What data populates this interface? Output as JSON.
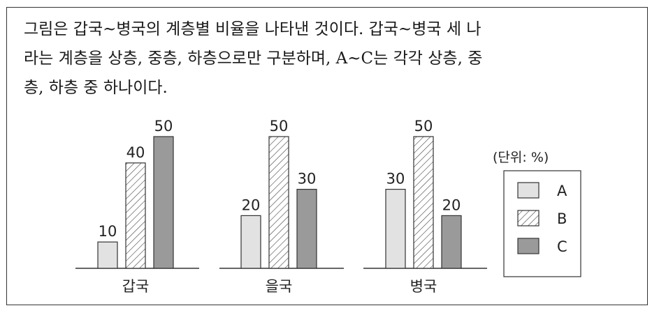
{
  "question": {
    "lines": [
      "그림은 갑국~병국의 계층별 비율을 나타낸 것이다. 갑국~병국 세 나",
      "라는 계층을 상층, 중층, 하층으로만 구분하며, A~C는 각각 상층, 중",
      "층, 하층 중 하나이다."
    ]
  },
  "chart_data": {
    "type": "bar",
    "categories": [
      "갑국",
      "을국",
      "병국"
    ],
    "series": [
      {
        "name": "A",
        "values": [
          10,
          20,
          30
        ],
        "pattern": "light",
        "color": "#e2e2e2"
      },
      {
        "name": "B",
        "values": [
          40,
          50,
          50
        ],
        "pattern": "hatch",
        "color": "#ffffff"
      },
      {
        "name": "C",
        "values": [
          50,
          30,
          20
        ],
        "pattern": "dark",
        "color": "#9a9a9a"
      }
    ],
    "unit_label": "(단위: %)",
    "legend_position": "right",
    "ylim": [
      0,
      50
    ]
  }
}
